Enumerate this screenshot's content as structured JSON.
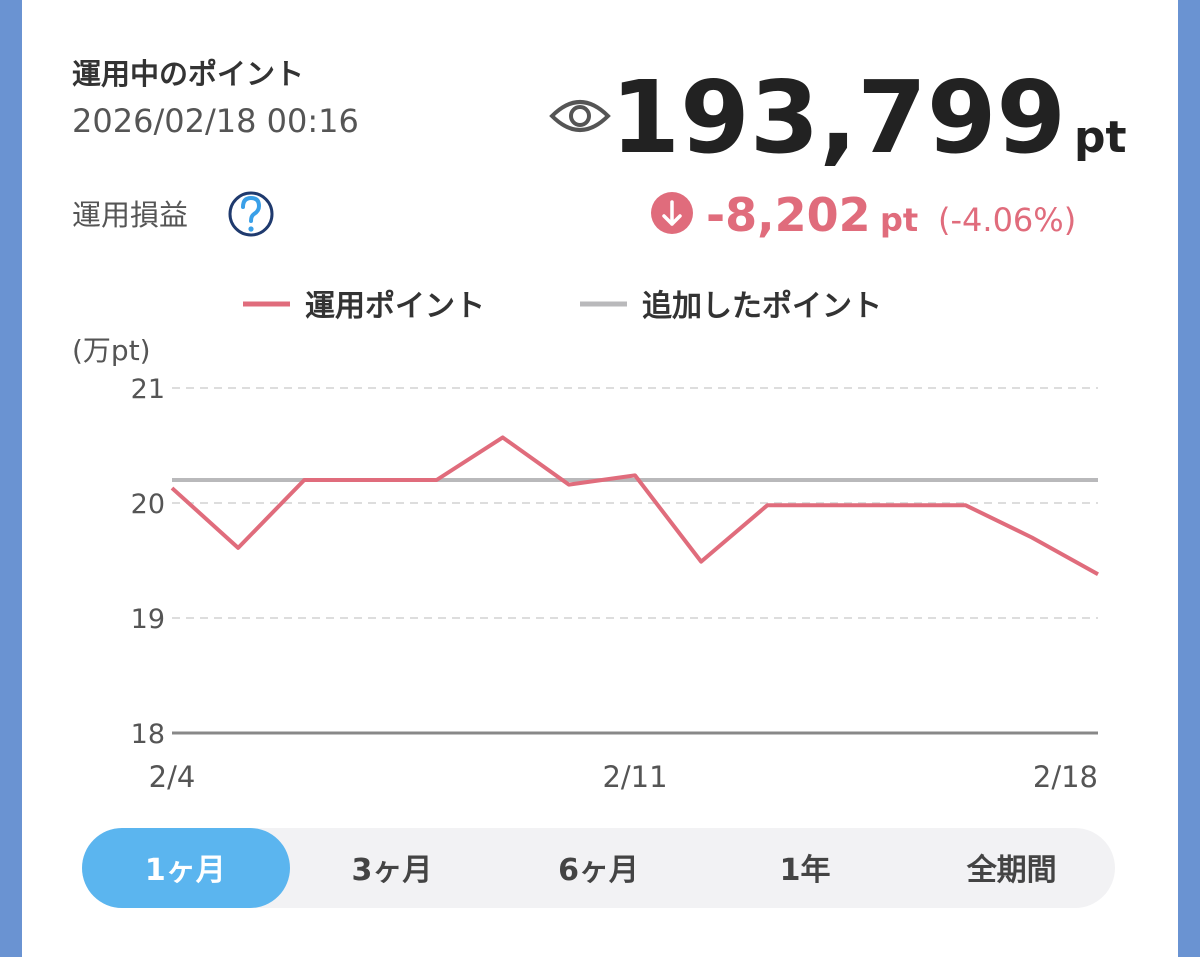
{
  "header": {
    "title": "運用中のポイント",
    "timestamp": "2026/02/18 00:16",
    "balance": "193,799",
    "balance_unit": "pt",
    "pl_label": "運用損益",
    "pl_value": "-8,202",
    "pl_unit": "pt",
    "pl_percent": "(-4.06%)"
  },
  "chart_data": {
    "type": "line",
    "y_label": "(万pt)",
    "categories": [
      "2/4",
      null,
      null,
      null,
      null,
      null,
      null,
      "2/11",
      null,
      null,
      null,
      null,
      null,
      null,
      "2/18"
    ],
    "series": [
      {
        "name": "運用ポイント",
        "color": "#e06c7c",
        "values": [
          20.13,
          19.61,
          20.2,
          20.2,
          20.2,
          20.57,
          20.16,
          20.24,
          19.49,
          19.98,
          19.98,
          19.98,
          19.98,
          19.7,
          19.38
        ]
      },
      {
        "name": "追加したポイント",
        "color": "#b9b9bb",
        "values": [
          20.2,
          20.2,
          20.2,
          20.2,
          20.2,
          20.2,
          20.2,
          20.2,
          20.2,
          20.2,
          20.2,
          20.2,
          20.2,
          20.2,
          20.2
        ]
      }
    ],
    "ylim": [
      18,
      21
    ],
    "yticks": [
      18,
      19,
      20,
      21
    ],
    "grid": true
  },
  "tabs": [
    {
      "label": "1ヶ月",
      "selected": true
    },
    {
      "label": "3ヶ月",
      "selected": false
    },
    {
      "label": "6ヶ月",
      "selected": false
    },
    {
      "label": "1年",
      "selected": false
    },
    {
      "label": "全期間",
      "selected": false
    }
  ]
}
